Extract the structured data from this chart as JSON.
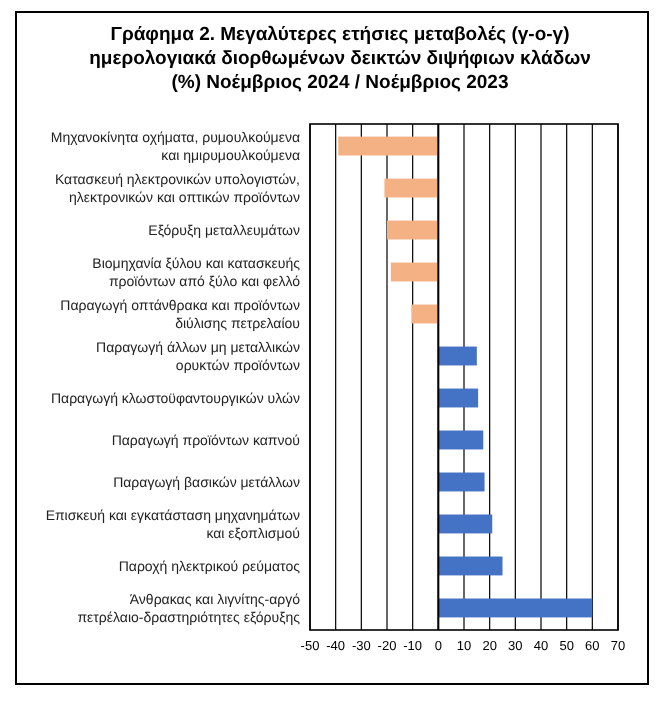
{
  "chart_data": {
    "type": "bar",
    "orientation": "horizontal",
    "title": "Γράφημα 2. Μεγαλύτερες ετήσιες μεταβολές (γ-ο-γ) ημερολογιακά διορθωμένων δεικτών διψήφιων κλάδων (%) Νοέμβριος 2024 / Νοέμβριος 2023",
    "categories": [
      "Μηχανοκίνητα οχήματα, ρυμουλκούμενα και ημιρυμουλκούμενα",
      "Κατασκευή ηλεκτρονικών υπολογιστών, ηλεκτρονικών και οπτικών προϊόντων",
      "Εξόρυξη μεταλλευμάτων",
      "Βιομηχανία ξύλου και κατασκευής προϊόντων από ξύλο και φελλό",
      "Παραγωγή οπτάνθρακα και προϊόντων διύλισης πετρελαίου",
      "Παραγωγή άλλων μη μεταλλικών ορυκτών προϊόντων",
      "Παραγωγή κλωστοϋφαντουργικών υλών",
      "Παραγωγή προϊόντων καπνού",
      "Παραγωγή βασικών μετάλλων",
      "Επισκευή και εγκατάσταση μηχανημάτων και εξοπλισμού",
      "Παροχή ηλεκτρικού ρεύματος",
      "Άνθρακας και λιγνίτης-αργό πετρέλαιο-δραστηριότητες εξόρυξης"
    ],
    "values": [
      -39,
      -21,
      -20,
      -18.5,
      -10.5,
      15,
      15.5,
      17.5,
      18,
      21,
      25,
      60
    ],
    "colors": [
      "#f4b183",
      "#f4b183",
      "#f4b183",
      "#f4b183",
      "#f4b183",
      "#4472c4",
      "#4472c4",
      "#4472c4",
      "#4472c4",
      "#4472c4",
      "#4472c4",
      "#4472c4"
    ],
    "xlim": [
      -50,
      70
    ],
    "xticks": [
      -50,
      -40,
      -30,
      -20,
      -10,
      0,
      10,
      20,
      30,
      40,
      50,
      60,
      70
    ],
    "grid": "x"
  }
}
